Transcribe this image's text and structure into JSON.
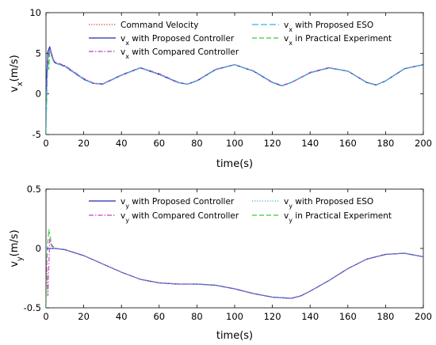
{
  "chart_data": [
    {
      "type": "line",
      "xlabel": "time(s)",
      "ylabel": "v_x(m/s)",
      "ylabel_main": "v",
      "ylabel_sub": "x",
      "ylabel_rest": "(m/s)",
      "xlim": [
        0,
        200
      ],
      "ylim": [
        -5,
        10
      ],
      "xticks": [
        0,
        20,
        40,
        60,
        80,
        100,
        120,
        140,
        160,
        180,
        200
      ],
      "yticks": [
        -5,
        0,
        5,
        10
      ],
      "legend_position": "top-inside",
      "legend": [
        {
          "main": "Command Velocity",
          "sub": "",
          "rest": ""
        },
        {
          "main": "v",
          "sub": "x",
          "rest": " with Proposed ESO"
        },
        {
          "main": "v",
          "sub": "x",
          "rest": " with Proposed Controller"
        },
        {
          "main": "v",
          "sub": "x",
          "rest": " in Practical Experiment"
        },
        {
          "main": "v",
          "sub": "x",
          "rest": " with Compared Controller"
        }
      ],
      "series": [
        {
          "name": "Command Velocity",
          "color": "#c0392b",
          "style": "dotted",
          "x": [
            0,
            1,
            2,
            3,
            4,
            5,
            10,
            15,
            20,
            25,
            30,
            40,
            50,
            60,
            70,
            75,
            80,
            90,
            100,
            110,
            120,
            125,
            130,
            140,
            150,
            160,
            170,
            175,
            180,
            190,
            200
          ],
          "y": [
            0,
            4.5,
            5.5,
            4.7,
            4.0,
            3.8,
            3.4,
            2.6,
            1.8,
            1.3,
            1.2,
            2.3,
            3.2,
            2.4,
            1.4,
            1.2,
            1.6,
            3.0,
            3.6,
            2.8,
            1.4,
            1.0,
            1.4,
            2.6,
            3.2,
            2.8,
            1.4,
            1.1,
            1.6,
            3.1,
            3.6
          ]
        },
        {
          "name": "v_x with Proposed Controller",
          "color": "#1f2aa8",
          "style": "solid",
          "x": [
            0,
            1,
            2,
            3,
            4,
            5,
            10,
            15,
            20,
            25,
            30,
            40,
            50,
            60,
            70,
            75,
            80,
            90,
            100,
            110,
            120,
            125,
            130,
            140,
            150,
            160,
            170,
            175,
            180,
            190,
            200
          ],
          "y": [
            0,
            5.2,
            5.8,
            4.9,
            4.1,
            3.8,
            3.4,
            2.6,
            1.8,
            1.3,
            1.2,
            2.3,
            3.2,
            2.4,
            1.4,
            1.2,
            1.6,
            3.0,
            3.6,
            2.8,
            1.4,
            1.0,
            1.4,
            2.6,
            3.2,
            2.8,
            1.4,
            1.1,
            1.6,
            3.1,
            3.6
          ]
        },
        {
          "name": "v_x with Compared Controller",
          "color": "#c040c0",
          "style": "dashdot",
          "x": [
            0,
            1,
            2,
            3,
            4,
            5,
            10,
            15,
            20,
            25,
            30,
            40,
            50,
            60,
            70,
            75,
            80,
            90,
            100,
            110,
            120,
            125,
            130,
            140,
            150,
            160,
            170,
            175,
            180,
            190,
            200
          ],
          "y": [
            0,
            4.0,
            5.6,
            5.0,
            4.2,
            3.9,
            3.5,
            2.7,
            1.9,
            1.35,
            1.25,
            2.35,
            3.25,
            2.5,
            1.45,
            1.2,
            1.65,
            3.05,
            3.6,
            2.85,
            1.45,
            1.05,
            1.4,
            2.65,
            3.25,
            2.8,
            1.45,
            1.1,
            1.6,
            3.1,
            3.6
          ]
        },
        {
          "name": "v_x with Proposed ESO",
          "color": "#3ab0e0",
          "style": "longdash",
          "x": [
            0,
            1,
            2,
            3,
            4,
            5,
            10,
            15,
            20,
            25,
            30,
            40,
            50,
            60,
            70,
            75,
            80,
            90,
            100,
            110,
            120,
            125,
            130,
            140,
            150,
            160,
            170,
            175,
            180,
            190,
            200
          ],
          "y": [
            -4.5,
            4.5,
            5.4,
            4.8,
            4.0,
            3.8,
            3.4,
            2.6,
            1.8,
            1.3,
            1.2,
            2.3,
            3.2,
            2.4,
            1.4,
            1.2,
            1.6,
            3.0,
            3.6,
            2.8,
            1.4,
            1.0,
            1.4,
            2.6,
            3.2,
            2.8,
            1.4,
            1.1,
            1.6,
            3.1,
            3.6
          ]
        },
        {
          "name": "v_x in Practical Experiment",
          "color": "#3cc63c",
          "style": "dashed",
          "x": [
            0,
            0.5,
            1,
            1.5,
            2,
            3,
            4,
            5,
            10,
            15,
            20,
            25,
            30,
            40,
            50,
            60,
            70,
            75,
            80,
            90,
            100,
            110,
            120,
            125,
            130,
            140,
            150,
            160,
            170,
            175,
            180,
            190,
            200
          ],
          "y": [
            -5,
            2.0,
            4.8,
            3.0,
            5.5,
            4.6,
            4.0,
            3.8,
            3.4,
            2.6,
            1.8,
            1.3,
            1.2,
            2.3,
            3.2,
            2.4,
            1.4,
            1.2,
            1.6,
            3.0,
            3.6,
            2.8,
            1.4,
            1.0,
            1.4,
            2.6,
            3.2,
            2.8,
            1.4,
            1.1,
            1.6,
            3.1,
            3.6
          ]
        }
      ]
    },
    {
      "type": "line",
      "xlabel": "time(s)",
      "ylabel": "v_y(m/s)",
      "ylabel_main": "v",
      "ylabel_sub": "y",
      "ylabel_rest": "(m/s)",
      "xlim": [
        0,
        200
      ],
      "ylim": [
        -0.5,
        0.5
      ],
      "xticks": [
        0,
        20,
        40,
        60,
        80,
        100,
        120,
        140,
        160,
        180,
        200
      ],
      "yticks": [
        -0.5,
        0,
        0.5
      ],
      "legend_position": "top-inside",
      "legend": [
        {
          "main": "v",
          "sub": "y",
          "rest": " with Proposed Controller"
        },
        {
          "main": "v",
          "sub": "y",
          "rest": " with Proposed ESO"
        },
        {
          "main": "v",
          "sub": "y",
          "rest": " with Compared Controller"
        },
        {
          "main": "v",
          "sub": "y",
          "rest": " in Practical Experiment"
        }
      ],
      "series": [
        {
          "name": "v_y with Proposed Controller",
          "color": "#1f2aa8",
          "style": "solid",
          "x": [
            0,
            5,
            10,
            20,
            30,
            40,
            50,
            60,
            70,
            80,
            90,
            100,
            110,
            120,
            130,
            135,
            140,
            150,
            160,
            170,
            180,
            190,
            200
          ],
          "y": [
            0.0,
            0.0,
            -0.01,
            -0.06,
            -0.13,
            -0.2,
            -0.26,
            -0.29,
            -0.3,
            -0.3,
            -0.31,
            -0.34,
            -0.38,
            -0.41,
            -0.42,
            -0.4,
            -0.36,
            -0.27,
            -0.17,
            -0.09,
            -0.05,
            -0.04,
            -0.07
          ]
        },
        {
          "name": "v_y with Compared Controller",
          "color": "#c040c0",
          "style": "dashdot",
          "x": [
            0,
            1,
            2,
            3,
            5,
            10,
            20,
            30,
            40,
            50,
            60,
            70,
            80,
            90,
            100,
            110,
            120,
            130,
            135,
            140,
            150,
            160,
            170,
            180,
            190,
            200
          ],
          "y": [
            0.0,
            -0.4,
            0.08,
            0.02,
            0.0,
            -0.01,
            -0.06,
            -0.13,
            -0.2,
            -0.26,
            -0.29,
            -0.3,
            -0.3,
            -0.31,
            -0.34,
            -0.38,
            -0.41,
            -0.42,
            -0.4,
            -0.36,
            -0.27,
            -0.17,
            -0.09,
            -0.05,
            -0.04,
            -0.07
          ]
        },
        {
          "name": "v_y with Proposed ESO",
          "color": "#3ab0e0",
          "style": "dotted",
          "x": [
            0,
            5,
            10,
            20,
            30,
            40,
            50,
            60,
            70,
            80,
            90,
            100,
            110,
            120,
            130,
            135,
            140,
            150,
            160,
            170,
            180,
            190,
            200
          ],
          "y": [
            0.0,
            0.0,
            -0.01,
            -0.06,
            -0.13,
            -0.2,
            -0.26,
            -0.29,
            -0.3,
            -0.3,
            -0.31,
            -0.34,
            -0.38,
            -0.41,
            -0.42,
            -0.4,
            -0.36,
            -0.27,
            -0.17,
            -0.09,
            -0.05,
            -0.04,
            -0.07
          ]
        },
        {
          "name": "v_y in Practical Experiment",
          "color": "#3cc63c",
          "style": "dashed",
          "x": [
            0,
            0.5,
            1,
            1.5,
            2,
            3,
            5,
            10,
            20,
            30,
            40,
            50,
            60,
            70,
            80,
            90,
            100,
            110,
            120,
            130,
            135,
            140,
            150,
            160,
            170,
            180,
            190,
            200
          ],
          "y": [
            -0.5,
            -0.1,
            0.05,
            0.16,
            0.12,
            0.03,
            0.0,
            -0.01,
            -0.06,
            -0.13,
            -0.2,
            -0.26,
            -0.29,
            -0.3,
            -0.3,
            -0.31,
            -0.34,
            -0.38,
            -0.41,
            -0.42,
            -0.4,
            -0.36,
            -0.27,
            -0.17,
            -0.09,
            -0.05,
            -0.04,
            -0.07
          ]
        }
      ]
    }
  ]
}
